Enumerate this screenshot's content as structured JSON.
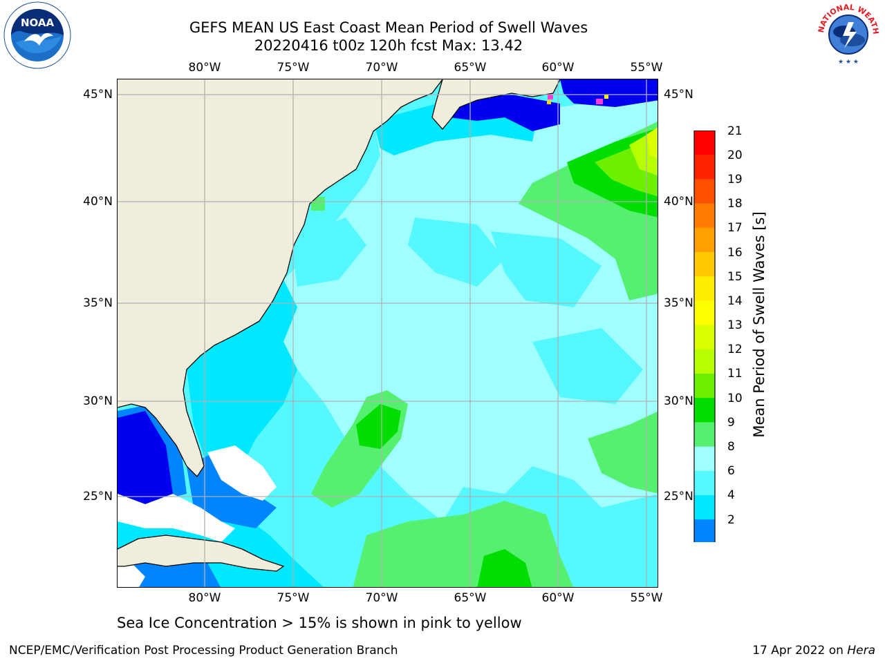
{
  "title_line1": "GEFS MEAN US East Coast Mean Period of Swell Waves",
  "title_line2": "20220416 t00z 120h fcst   Max: 13.42",
  "lon_ticks": [
    "80°W",
    "75°W",
    "70°W",
    "65°W",
    "60°W",
    "55°W"
  ],
  "lat_ticks": [
    "45°N",
    "40°N",
    "35°N",
    "30°N",
    "25°N"
  ],
  "colorbar": {
    "label": "Mean Period of Swell Waves [s]",
    "ticks": [
      "21",
      "20",
      "19",
      "18",
      "17",
      "16",
      "15",
      "14",
      "13",
      "12",
      "11",
      "10",
      "9",
      "8",
      "6",
      "4",
      "2"
    ],
    "colors": [
      "#ff0000",
      "#ff2400",
      "#ff5000",
      "#ff7c00",
      "#ff9f00",
      "#ffc800",
      "#ffee00",
      "#ffff00",
      "#dcff00",
      "#b5ff00",
      "#6cf000",
      "#00dd00",
      "#55f070",
      "#a0ffff",
      "#55f8ff",
      "#00e8ff",
      "#0085ff"
    ],
    "under_color": "#0000f0"
  },
  "map_colors": {
    "land": "#efeddc",
    "under": "#0000f0",
    "c2_4": "#0085ff",
    "c4_6": "#00e8ff",
    "c6_8": "#55f8ff",
    "c8_9": "#a0ffff",
    "c9_10": "#55f070",
    "c10_11": "#00dd00",
    "c11_12": "#6cf000",
    "c12_13": "#b5ff00",
    "c13_14": "#dcff00",
    "grid": "#b0b0b0"
  },
  "sea_ice_note": "Sea Ice Concentration > 15% is shown in pink to yellow",
  "footer_left": "NCEP/EMC/Verification Post Processing Product Generation Branch",
  "footer_right_prefix": "17 Apr 2022 on ",
  "footer_right_machine": "Hera",
  "logos": {
    "noaa_text": "NOAA",
    "nws_text": "NATIONAL WEATHER SERVICE",
    "noaa_ring_text": "NATIONAL OCEANIC AND ATMOSPHERIC ADMINISTRATION"
  }
}
